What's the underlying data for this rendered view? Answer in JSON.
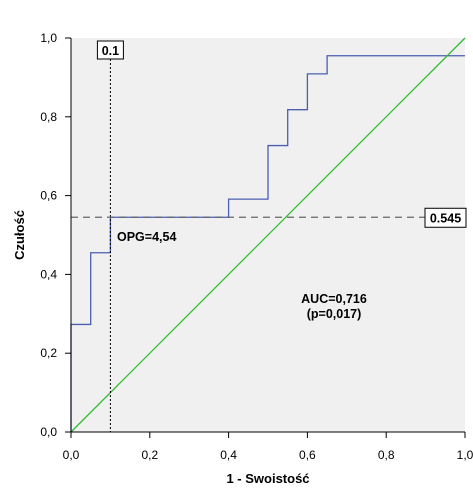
{
  "chart_data": {
    "type": "line",
    "xlabel": "1 - Swoistość",
    "ylabel": "Czułość",
    "xlim": [
      0,
      1
    ],
    "ylim": [
      0,
      1
    ],
    "x_ticks": [
      "0,0",
      "0,2",
      "0,4",
      "0,6",
      "0,8",
      "1,0"
    ],
    "y_ticks": [
      "0,0",
      "0,2",
      "0,4",
      "0,6",
      "0,8",
      "1,0"
    ],
    "grid": false,
    "plot_background": "#f0f0f0",
    "series": [
      {
        "kind": "roc-step",
        "color": "#4a5fb0",
        "x": [
          0,
          0,
          0.05,
          0.05,
          0.1,
          0.1,
          0.4,
          0.4,
          0.5,
          0.5,
          0.55,
          0.55,
          0.6,
          0.6,
          0.65,
          0.65,
          1.0
        ],
        "y": [
          0,
          0.273,
          0.273,
          0.455,
          0.455,
          0.545,
          0.545,
          0.591,
          0.591,
          0.727,
          0.727,
          0.818,
          0.818,
          0.909,
          0.909,
          0.955,
          0.955
        ]
      },
      {
        "kind": "reference-line",
        "color": "#33bb33",
        "x": [
          0,
          1
        ],
        "y": [
          0,
          1
        ]
      }
    ],
    "reference_lines": [
      {
        "kind": "vertical",
        "value": 0.1,
        "label": "0.1",
        "style": "dotted"
      },
      {
        "kind": "horizontal",
        "value": 0.545,
        "label": "0.545",
        "style": "dashed"
      }
    ],
    "annotations": {
      "cutoff": "OPG=4,54",
      "auc": "AUC=0,716",
      "p_value": "(p=0,017)"
    }
  }
}
